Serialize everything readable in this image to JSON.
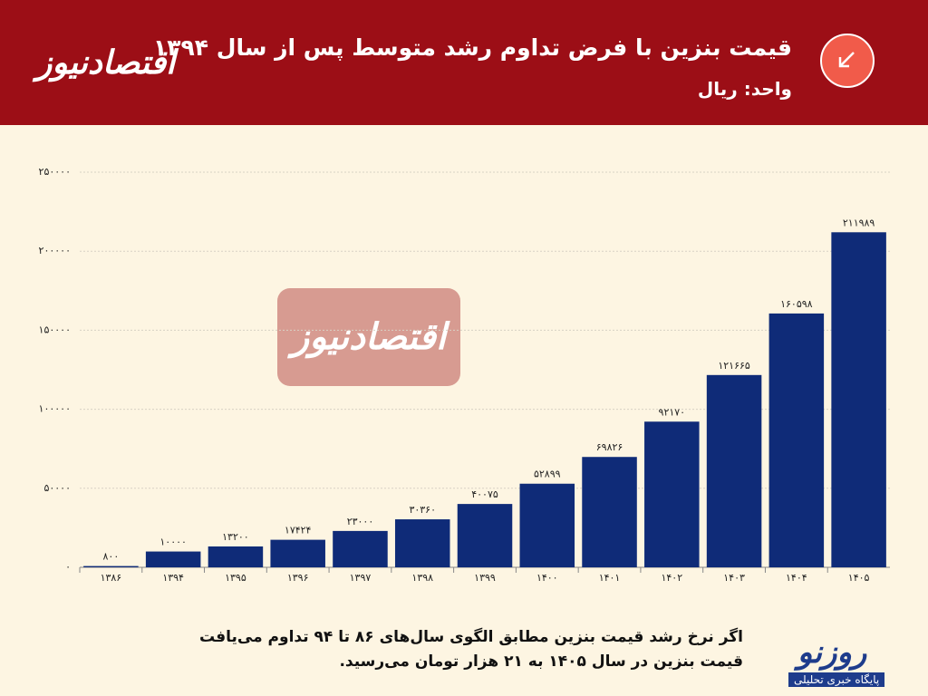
{
  "header": {
    "logo": "اقتصادنیوز"
  },
  "footer": {
    "note": [
      "اگر نرخ رشد قیمت بنزین مطابق الگوی سال‌های ۸۶ تا ۹۴ تداوم می‌یافت",
      "قیمت بنزین در سال ۱۴۰۵ به ۲۱ هزار تومان می‌رسید."
    ],
    "brand": "روزنو",
    "brand_tagline": "پایگاه خبری تحلیلی"
  },
  "chart_data": {
    "type": "bar",
    "title": "قیمت بنزین با فرض تداوم رشد متوسط پس از سال ۱۳۹۴",
    "subtitle": "واحد: ریال",
    "watermark": "اقتصادنیوز",
    "categories": [
      "۱۳۸۶",
      "۱۳۹۴",
      "۱۳۹۵",
      "۱۳۹۶",
      "۱۳۹۷",
      "۱۳۹۸",
      "۱۳۹۹",
      "۱۴۰۰",
      "۱۴۰۱",
      "۱۴۰۲",
      "۱۴۰۳",
      "۱۴۰۴",
      "۱۴۰۵"
    ],
    "values": [
      800,
      10000,
      13200,
      17424,
      23000,
      30360,
      40075,
      52899,
      69826,
      92170,
      121665,
      160598,
      211989
    ],
    "value_labels": [
      "۸۰۰",
      "۱۰۰۰۰",
      "۱۳۲۰۰",
      "۱۷۴۲۴",
      "۲۳۰۰۰",
      "۳۰۳۶۰",
      "۴۰۰۷۵",
      "۵۲۸۹۹",
      "۶۹۸۲۶",
      "۹۲۱۷۰",
      "۱۲۱۶۶۵",
      "۱۶۰۵۹۸",
      "۲۱۱۹۸۹"
    ],
    "color": "#0f2b78",
    "ylim": [
      0,
      250000
    ],
    "yticks": [
      {
        "value": 0,
        "label": "۰"
      },
      {
        "value": 50000,
        "label": "۵۰۰۰۰"
      },
      {
        "value": 100000,
        "label": "۱۰۰۰۰۰"
      },
      {
        "value": 150000,
        "label": "۱۵۰۰۰۰"
      },
      {
        "value": 200000,
        "label": "۲۰۰۰۰۰"
      },
      {
        "value": 250000,
        "label": "۲۵۰۰۰۰"
      }
    ],
    "grid": true
  }
}
